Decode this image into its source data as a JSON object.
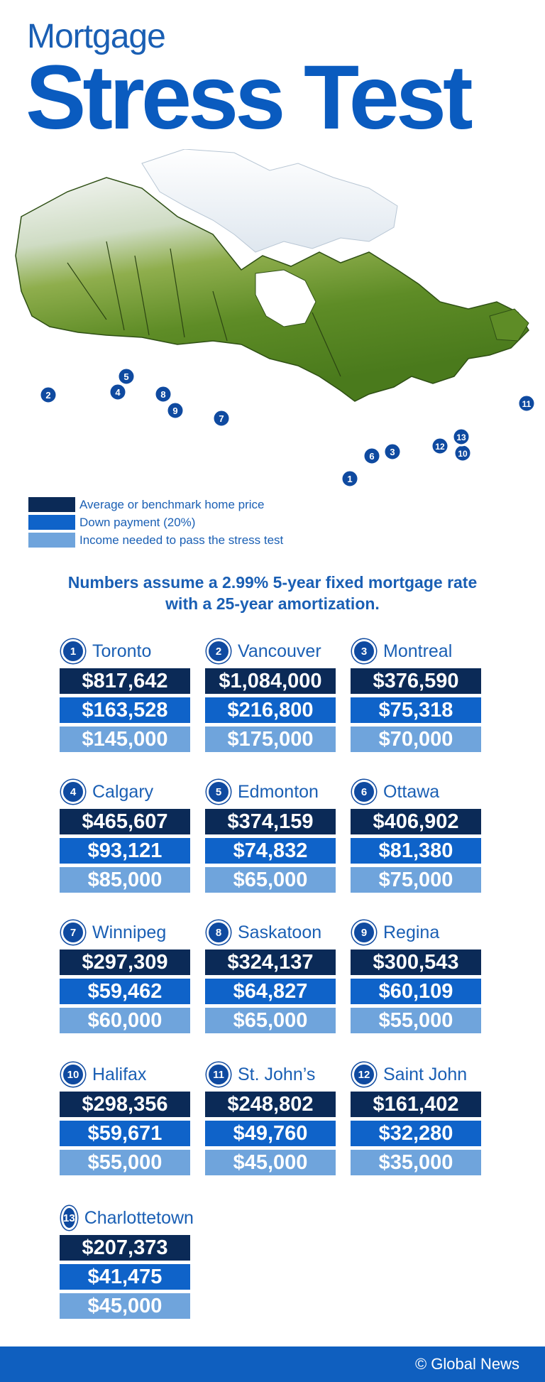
{
  "header": {
    "title_small": "Mortgage",
    "title_big": "Stress Test"
  },
  "legend": [
    {
      "label": "Average or benchmark home price",
      "color": "#0b2a57"
    },
    {
      "label": "Down payment (20%)",
      "color": "#0f63c9"
    },
    {
      "label": "Income needed to pass the stress test",
      "color": "#6fa4dc"
    }
  ],
  "note": {
    "line1": "Numbers assume a 2.99% 5-year fixed mortgage rate",
    "line2": "with a 25-year amortization."
  },
  "map_markers": [
    "1",
    "2",
    "3",
    "4",
    "5",
    "6",
    "7",
    "8",
    "9",
    "10",
    "11",
    "12",
    "13"
  ],
  "cities": [
    {
      "num": "1",
      "name": "Toronto",
      "price": "$817,642",
      "down": "$163,528",
      "income": "$145,000"
    },
    {
      "num": "2",
      "name": "Vancouver",
      "price": "$1,084,000",
      "down": "$216,800",
      "income": "$175,000"
    },
    {
      "num": "3",
      "name": "Montreal",
      "price": "$376,590",
      "down": "$75,318",
      "income": "$70,000"
    },
    {
      "num": "4",
      "name": "Calgary",
      "price": "$465,607",
      "down": "$93,121",
      "income": "$85,000"
    },
    {
      "num": "5",
      "name": "Edmonton",
      "price": "$374,159",
      "down": "$74,832",
      "income": "$65,000"
    },
    {
      "num": "6",
      "name": "Ottawa",
      "price": "$406,902",
      "down": "$81,380",
      "income": "$75,000"
    },
    {
      "num": "7",
      "name": "Winnipeg",
      "price": "$297,309",
      "down": "$59,462",
      "income": "$60,000"
    },
    {
      "num": "8",
      "name": "Saskatoon",
      "price": "$324,137",
      "down": "$64,827",
      "income": "$65,000"
    },
    {
      "num": "9",
      "name": "Regina",
      "price": "$300,543",
      "down": "$60,109",
      "income": "$55,000"
    },
    {
      "num": "10",
      "name": "Halifax",
      "price": "$298,356",
      "down": "$59,671",
      "income": "$55,000"
    },
    {
      "num": "11",
      "name": "St. John’s",
      "price": "$248,802",
      "down": "$49,760",
      "income": "$45,000"
    },
    {
      "num": "12",
      "name": "Saint John",
      "price": "$161,402",
      "down": "$32,280",
      "income": "$35,000"
    },
    {
      "num": "13",
      "name": "Charlottetown",
      "price": "$207,373",
      "down": "$41,475",
      "income": "$45,000"
    }
  ],
  "footer": {
    "credit": "© Global News"
  }
}
